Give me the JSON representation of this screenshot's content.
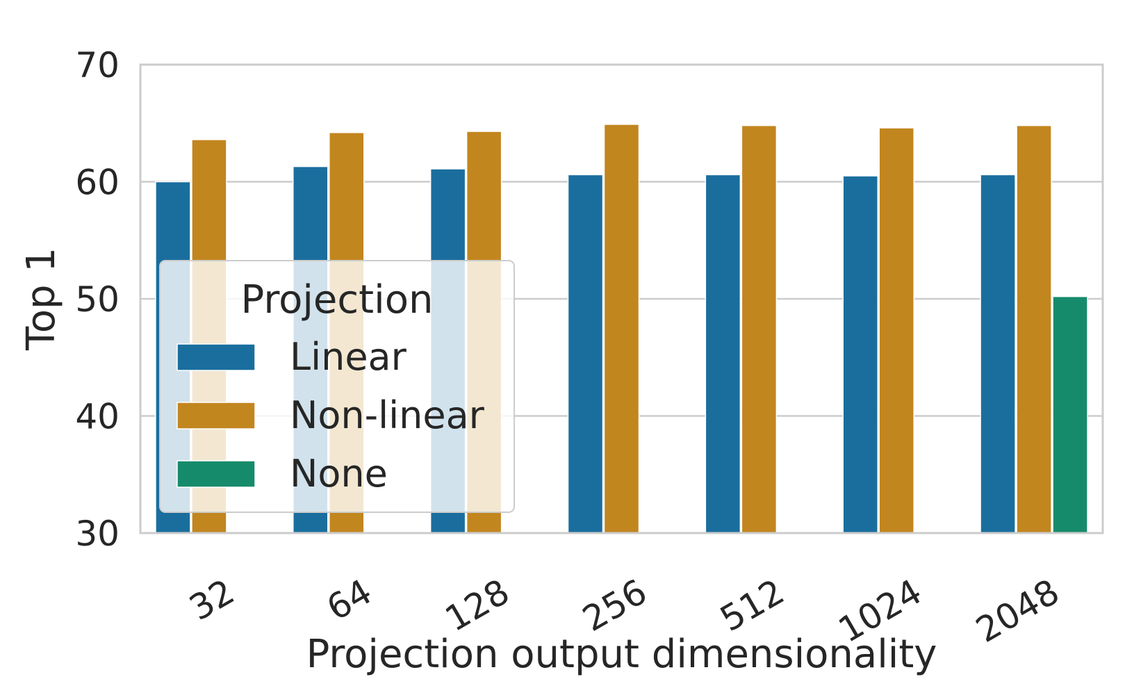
{
  "chart_data": {
    "type": "bar",
    "xlabel": "Projection output dimensionality",
    "ylabel": "Top 1",
    "categories": [
      "32",
      "64",
      "128",
      "256",
      "512",
      "1024",
      "2048"
    ],
    "ylim": [
      30,
      70
    ],
    "yticks": [
      30,
      40,
      50,
      60,
      70
    ],
    "grid": true,
    "legend": {
      "title": "Projection",
      "placement": "center-left",
      "entries": [
        "Linear",
        "Non-linear",
        "None"
      ]
    },
    "series": [
      {
        "name": "Linear",
        "color": "#1a6e9e",
        "values": [
          60.0,
          61.3,
          61.1,
          60.6,
          60.6,
          60.5,
          60.6
        ]
      },
      {
        "name": "Non-linear",
        "color": "#c2861f",
        "values": [
          63.6,
          64.2,
          64.3,
          64.9,
          64.8,
          64.6,
          64.8
        ]
      },
      {
        "name": "None",
        "color": "#168b6b",
        "values": [
          null,
          null,
          null,
          null,
          null,
          null,
          50.2
        ]
      }
    ]
  }
}
